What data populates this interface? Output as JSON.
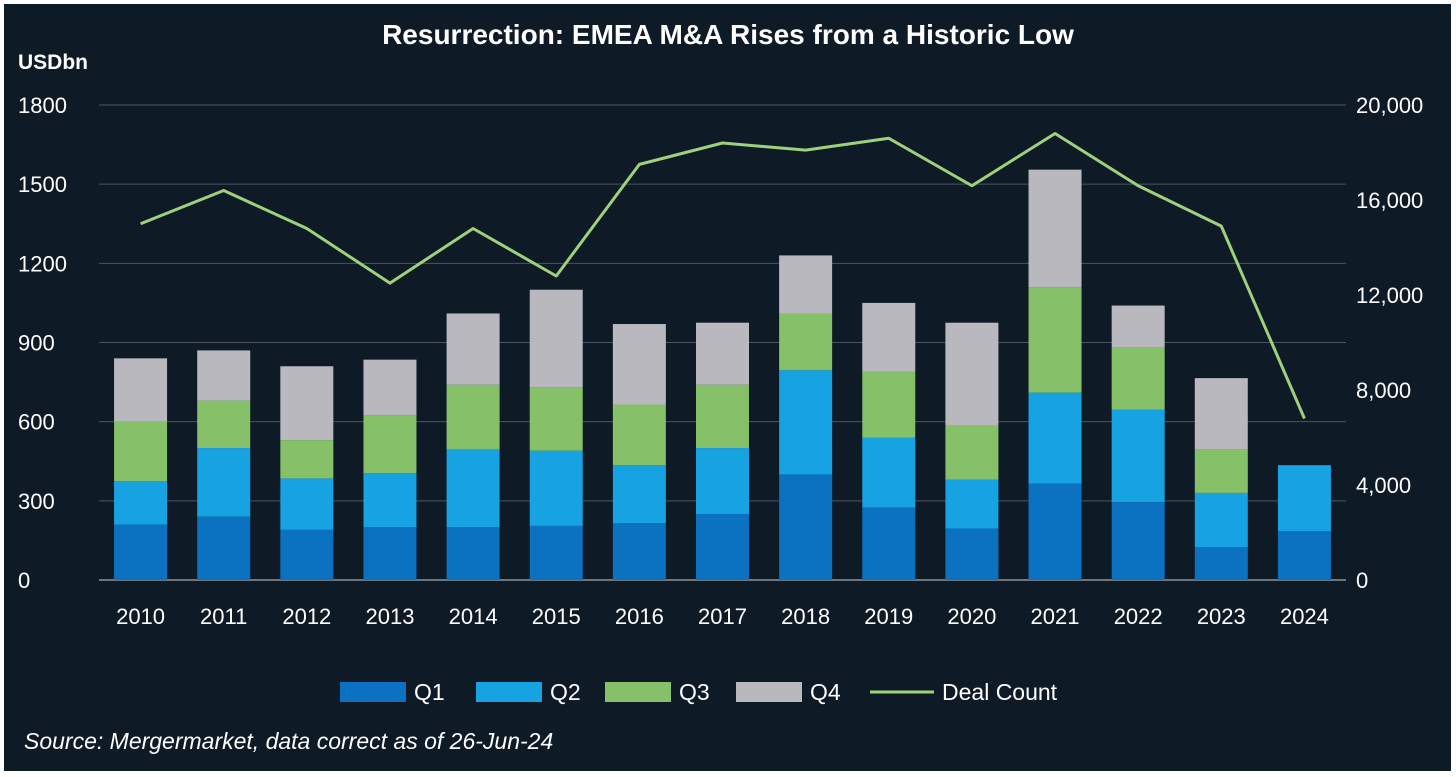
{
  "chart_data": {
    "type": "bar",
    "stacked": true,
    "title": "Resurrection: EMEA M&A Rises from a Historic Low",
    "ylabel": "USDbn",
    "categories": [
      "2010",
      "2011",
      "2012",
      "2013",
      "2014",
      "2015",
      "2016",
      "2017",
      "2018",
      "2019",
      "2020",
      "2021",
      "2022",
      "2023",
      "2024"
    ],
    "series": [
      {
        "name": "Q1",
        "color": "#0a72c0",
        "values": [
          210,
          240,
          190,
          200,
          200,
          205,
          215,
          250,
          400,
          275,
          195,
          365,
          295,
          125,
          185
        ]
      },
      {
        "name": "Q2",
        "color": "#17a2e2",
        "values": [
          165,
          260,
          195,
          205,
          295,
          285,
          220,
          250,
          395,
          265,
          185,
          345,
          350,
          205,
          250
        ]
      },
      {
        "name": "Q3",
        "color": "#86c16a",
        "values": [
          225,
          180,
          145,
          220,
          245,
          240,
          230,
          240,
          215,
          250,
          205,
          400,
          235,
          165,
          0
        ]
      },
      {
        "name": "Q4",
        "color": "#b8b8be",
        "values": [
          240,
          190,
          280,
          210,
          270,
          370,
          305,
          235,
          220,
          260,
          390,
          445,
          160,
          270,
          0
        ]
      }
    ],
    "line_series": {
      "name": "Deal Count",
      "color": "#9fd07b",
      "axis": "right",
      "values": [
        15000,
        16400,
        14800,
        12500,
        14800,
        12800,
        17500,
        18400,
        18100,
        18600,
        16600,
        18800,
        16600,
        14900,
        6800
      ]
    },
    "ylim": [
      0,
      1800
    ],
    "yticks": [
      "0",
      "300",
      "600",
      "900",
      "1200",
      "1500",
      "1800"
    ],
    "y2lim": [
      0,
      20000
    ],
    "y2ticks": [
      "0",
      "4,000",
      "8,000",
      "12,000",
      "16,000",
      "20,000"
    ],
    "grid": true,
    "legend": {
      "position": "bottom",
      "entries": [
        "Q1",
        "Q2",
        "Q3",
        "Q4",
        "Deal Count"
      ]
    },
    "source": "Source: Mergermarket, data correct as of 26-Jun-24"
  }
}
